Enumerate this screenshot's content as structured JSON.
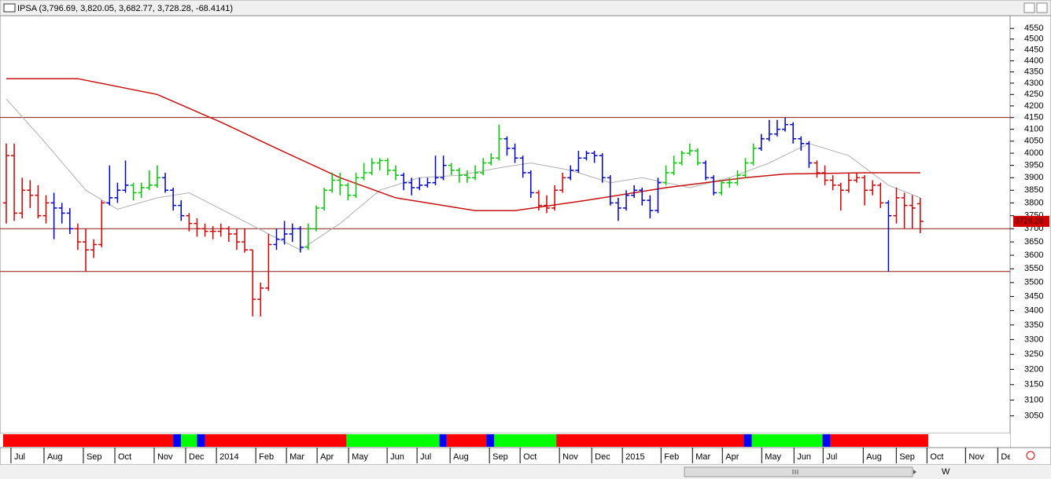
{
  "chart_data": {
    "type": "ohlc",
    "title": "IPSA (3,796.69, 3,820.05, 3,682.77, 3,728.28, -68.4141)",
    "last_price_label": "3728.28",
    "toolbar_label": "W",
    "log_scale": true,
    "ylim": [
      3000,
      4610
    ],
    "yticks": [
      3050,
      3100,
      3150,
      3200,
      3250,
      3300,
      3350,
      3400,
      3450,
      3500,
      3550,
      3600,
      3650,
      3700,
      3750,
      3800,
      3850,
      3900,
      3950,
      4000,
      4050,
      4100,
      4150,
      4200,
      4250,
      4300,
      4350,
      4400,
      4450,
      4500,
      4550
    ],
    "xlim": [
      -0.79,
      126.3
    ],
    "xticks": [
      {
        "value": 0.59,
        "label": "Jul"
      },
      {
        "value": 4.75,
        "label": "Aug"
      },
      {
        "value": 9.7,
        "label": "Sep"
      },
      {
        "value": 13.66,
        "label": "Oct"
      },
      {
        "value": 18.61,
        "label": "Nov"
      },
      {
        "value": 22.57,
        "label": "Dec"
      },
      {
        "value": 26.44,
        "label": "2014"
      },
      {
        "value": 31.39,
        "label": "Feb"
      },
      {
        "value": 35.25,
        "label": "Mar"
      },
      {
        "value": 39.11,
        "label": "Apr"
      },
      {
        "value": 43.07,
        "label": "May"
      },
      {
        "value": 47.92,
        "label": "Jun"
      },
      {
        "value": 51.68,
        "label": "Jul"
      },
      {
        "value": 55.84,
        "label": "Aug"
      },
      {
        "value": 60.79,
        "label": "Sep"
      },
      {
        "value": 64.65,
        "label": "Oct"
      },
      {
        "value": 69.6,
        "label": "Nov"
      },
      {
        "value": 73.66,
        "label": "Dec"
      },
      {
        "value": 77.52,
        "label": "2015"
      },
      {
        "value": 82.38,
        "label": "Feb"
      },
      {
        "value": 86.34,
        "label": "Mar"
      },
      {
        "value": 90.1,
        "label": "Apr"
      },
      {
        "value": 95.05,
        "label": "May"
      },
      {
        "value": 99.11,
        "label": "Jun"
      },
      {
        "value": 102.77,
        "label": "Jul"
      },
      {
        "value": 107.82,
        "label": "Aug"
      },
      {
        "value": 111.98,
        "label": "Sep"
      },
      {
        "value": 115.84,
        "label": "Oct"
      },
      {
        "value": 120.69,
        "label": "Nov"
      },
      {
        "value": 124.75,
        "label": "Dec"
      }
    ],
    "ohlc": [
      [
        3800,
        4040,
        3720,
        3990
      ],
      [
        3990,
        4040,
        3730,
        3760
      ],
      [
        3760,
        3900,
        3740,
        3850
      ],
      [
        3850,
        3890,
        3780,
        3830
      ],
      [
        3830,
        3870,
        3740,
        3750
      ],
      [
        3750,
        3830,
        3720,
        3800
      ],
      [
        3800,
        3840,
        3660,
        3780
      ],
      [
        3780,
        3800,
        3720,
        3760
      ],
      [
        3760,
        3780,
        3680,
        3700
      ],
      [
        3700,
        3720,
        3620,
        3650
      ],
      [
        3650,
        3700,
        3540,
        3620
      ],
      [
        3620,
        3660,
        3590,
        3640
      ],
      [
        3640,
        3810,
        3630,
        3800
      ],
      [
        3800,
        3950,
        3790,
        3820
      ],
      [
        3820,
        3880,
        3800,
        3850
      ],
      [
        3850,
        3970,
        3840,
        3870
      ],
      [
        3870,
        3880,
        3810,
        3840
      ],
      [
        3840,
        3880,
        3820,
        3860
      ],
      [
        3860,
        3930,
        3850,
        3870
      ],
      [
        3870,
        3950,
        3860,
        3900
      ],
      [
        3900,
        3920,
        3840,
        3850
      ],
      [
        3850,
        3860,
        3770,
        3790
      ],
      [
        3790,
        3810,
        3730,
        3750
      ],
      [
        3750,
        3760,
        3690,
        3720
      ],
      [
        3720,
        3740,
        3670,
        3700
      ],
      [
        3700,
        3720,
        3670,
        3690
      ],
      [
        3690,
        3710,
        3660,
        3690
      ],
      [
        3690,
        3720,
        3670,
        3700
      ],
      [
        3700,
        3710,
        3650,
        3680
      ],
      [
        3680,
        3700,
        3620,
        3650
      ],
      [
        3650,
        3700,
        3610,
        3620
      ],
      [
        3620,
        3620,
        3380,
        3440
      ],
      [
        3440,
        3500,
        3380,
        3480
      ],
      [
        3480,
        3680,
        3470,
        3640
      ],
      [
        3640,
        3700,
        3620,
        3660
      ],
      [
        3660,
        3730,
        3640,
        3680
      ],
      [
        3680,
        3720,
        3650,
        3700
      ],
      [
        3700,
        3710,
        3610,
        3630
      ],
      [
        3630,
        3720,
        3620,
        3700
      ],
      [
        3700,
        3790,
        3690,
        3780
      ],
      [
        3780,
        3860,
        3770,
        3850
      ],
      [
        3850,
        3920,
        3840,
        3890
      ],
      [
        3890,
        3920,
        3830,
        3870
      ],
      [
        3870,
        3880,
        3810,
        3830
      ],
      [
        3830,
        3920,
        3820,
        3900
      ],
      [
        3900,
        3960,
        3890,
        3920
      ],
      [
        3920,
        3980,
        3910,
        3960
      ],
      [
        3960,
        3980,
        3930,
        3970
      ],
      [
        3970,
        3980,
        3910,
        3930
      ],
      [
        3930,
        3950,
        3890,
        3910
      ],
      [
        3910,
        3920,
        3850,
        3880
      ],
      [
        3880,
        3900,
        3830,
        3860
      ],
      [
        3860,
        3900,
        3850,
        3870
      ],
      [
        3870,
        3900,
        3860,
        3880
      ],
      [
        3880,
        3990,
        3870,
        3900
      ],
      [
        3900,
        3990,
        3890,
        3950
      ],
      [
        3950,
        3960,
        3910,
        3930
      ],
      [
        3930,
        3940,
        3880,
        3910
      ],
      [
        3910,
        3930,
        3880,
        3900
      ],
      [
        3900,
        3950,
        3890,
        3920
      ],
      [
        3920,
        3980,
        3910,
        3960
      ],
      [
        3960,
        4000,
        3950,
        3980
      ],
      [
        3980,
        4120,
        3970,
        4060
      ],
      [
        4060,
        4070,
        3990,
        4020
      ],
      [
        4020,
        4040,
        3960,
        3980
      ],
      [
        3980,
        3990,
        3900,
        3920
      ],
      [
        3920,
        3930,
        3820,
        3840
      ],
      [
        3840,
        3850,
        3770,
        3790
      ],
      [
        3790,
        3830,
        3760,
        3780
      ],
      [
        3780,
        3870,
        3770,
        3850
      ],
      [
        3850,
        3920,
        3840,
        3900
      ],
      [
        3900,
        3950,
        3890,
        3930
      ],
      [
        3930,
        4010,
        3920,
        3980
      ],
      [
        3980,
        4010,
        3970,
        4000
      ],
      [
        4000,
        4010,
        3960,
        3990
      ],
      [
        3990,
        4000,
        3880,
        3900
      ],
      [
        3900,
        3910,
        3790,
        3800
      ],
      [
        3800,
        3820,
        3730,
        3780
      ],
      [
        3780,
        3850,
        3770,
        3830
      ],
      [
        3830,
        3870,
        3820,
        3850
      ],
      [
        3850,
        3860,
        3790,
        3810
      ],
      [
        3810,
        3830,
        3740,
        3770
      ],
      [
        3770,
        3900,
        3760,
        3880
      ],
      [
        3880,
        3950,
        3870,
        3920
      ],
      [
        3920,
        3990,
        3910,
        3960
      ],
      [
        3960,
        4010,
        3950,
        4000
      ],
      [
        4000,
        4040,
        3990,
        4010
      ],
      [
        4010,
        4020,
        3950,
        3960
      ],
      [
        3960,
        3970,
        3890,
        3900
      ],
      [
        3900,
        3910,
        3830,
        3840
      ],
      [
        3840,
        3890,
        3830,
        3880
      ],
      [
        3880,
        3900,
        3860,
        3880
      ],
      [
        3880,
        3930,
        3870,
        3910
      ],
      [
        3910,
        3980,
        3900,
        3960
      ],
      [
        3960,
        4040,
        3950,
        4020
      ],
      [
        4020,
        4080,
        4010,
        4060
      ],
      [
        4060,
        4140,
        4050,
        4080
      ],
      [
        4080,
        4140,
        4070,
        4100
      ],
      [
        4100,
        4150,
        4090,
        4120
      ],
      [
        4120,
        4130,
        4040,
        4060
      ],
      [
        4060,
        4070,
        4010,
        4040
      ],
      [
        4040,
        4050,
        3940,
        3960
      ],
      [
        3960,
        3970,
        3900,
        3920
      ],
      [
        3920,
        3950,
        3870,
        3890
      ],
      [
        3890,
        3910,
        3850,
        3870
      ],
      [
        3870,
        3880,
        3770,
        3850
      ],
      [
        3850,
        3920,
        3840,
        3890
      ],
      [
        3890,
        3920,
        3880,
        3900
      ],
      [
        3900,
        3910,
        3790,
        3850
      ],
      [
        3850,
        3890,
        3830,
        3870
      ],
      [
        3870,
        3880,
        3780,
        3800
      ],
      [
        3800,
        3810,
        3540,
        3750
      ],
      [
        3750,
        3860,
        3720,
        3820
      ],
      [
        3820,
        3840,
        3700,
        3790
      ],
      [
        3790,
        3830,
        3700,
        3780
      ],
      [
        3796.69,
        3820.05,
        3682.77,
        3728.28
      ]
    ],
    "bar_colors": [
      "#d00000",
      "#d00000",
      "#d00000",
      "#d00000",
      "#d00000",
      "#d00000",
      "#0000c8",
      "#0000c8",
      "#0000c8",
      "#d00000",
      "#d00000",
      "#d00000",
      "#d00000",
      "#0000c8",
      "#0000c8",
      "#0000c8",
      "#00c800",
      "#00c800",
      "#00c800",
      "#00c800",
      "#0000c8",
      "#0000c8",
      "#0000c8",
      "#d00000",
      "#d00000",
      "#d00000",
      "#d00000",
      "#d00000",
      "#d00000",
      "#d00000",
      "#d00000",
      "#d00000",
      "#d00000",
      "#d00000",
      "#0000c8",
      "#0000c8",
      "#0000c8",
      "#0000c8",
      "#00c800",
      "#00c800",
      "#00c800",
      "#00c800",
      "#00c800",
      "#00c800",
      "#00c800",
      "#00c800",
      "#00c800",
      "#00c800",
      "#00c800",
      "#00c800",
      "#0000c8",
      "#0000c8",
      "#0000c8",
      "#0000c8",
      "#0000c8",
      "#0000c8",
      "#00c800",
      "#00c800",
      "#00c800",
      "#00c800",
      "#00c800",
      "#00c800",
      "#00c800",
      "#0000c8",
      "#0000c8",
      "#0000c8",
      "#0000c8",
      "#d00000",
      "#d00000",
      "#d00000",
      "#d00000",
      "#0000c8",
      "#0000c8",
      "#0000c8",
      "#0000c8",
      "#0000c8",
      "#0000c8",
      "#0000c8",
      "#0000c8",
      "#0000c8",
      "#0000c8",
      "#0000c8",
      "#0000c8",
      "#00c800",
      "#00c800",
      "#00c800",
      "#00c800",
      "#00c800",
      "#0000c8",
      "#0000c8",
      "#00c800",
      "#00c800",
      "#00c800",
      "#00c800",
      "#00c800",
      "#0000c8",
      "#0000c8",
      "#0000c8",
      "#0000c8",
      "#0000c8",
      "#0000c8",
      "#0000c8",
      "#d00000",
      "#d00000",
      "#d00000",
      "#d00000",
      "#d00000",
      "#d00000",
      "#d00000",
      "#d00000",
      "#d00000",
      "#0000c8",
      "#d00000",
      "#d00000",
      "#d00000",
      "#d00000"
    ],
    "ma_short": {
      "color": "#b0b0b0",
      "x": [
        0,
        5,
        10,
        14,
        19,
        23,
        28,
        33,
        37,
        42,
        47,
        52,
        57,
        62,
        66,
        71,
        76,
        80,
        86,
        91,
        96,
        101,
        106,
        111,
        115
      ],
      "values": [
        4230,
        4040,
        3850,
        3775,
        3820,
        3840,
        3760,
        3680,
        3620,
        3720,
        3850,
        3900,
        3910,
        3940,
        3960,
        3930,
        3880,
        3900,
        3860,
        3900,
        3960,
        4040,
        3990,
        3870,
        3820
      ]
    },
    "ma_long": {
      "color": "#c81010",
      "x": [
        0,
        9,
        19,
        27,
        34,
        42,
        49,
        59,
        64,
        73,
        83,
        93,
        98,
        108,
        115
      ],
      "values": [
        4320,
        4320,
        4250,
        4130,
        4020,
        3900,
        3820,
        3770,
        3770,
        3810,
        3860,
        3900,
        3915,
        3920,
        3920
      ]
    },
    "levels": {
      "color": "#8b1a1a",
      "values": [
        4150,
        3700,
        3540
      ]
    },
    "signal": {
      "edges": [
        -0.4,
        21,
        22,
        24,
        25,
        42.8,
        54.5,
        55.4,
        60.4,
        61.4,
        69.2,
        92.8,
        93.8,
        102.7,
        103.7,
        116
      ],
      "colors": [
        "#ff0000",
        "#0000ff",
        "#00ff00",
        "#0000ff",
        "#ff0000",
        "#00ff00",
        "#0000ff",
        "#ff0000",
        "#0000ff",
        "#00ff00",
        "#ff0000",
        "#0000ff",
        "#00ff00",
        "#0000ff",
        "#ff0000"
      ]
    }
  }
}
